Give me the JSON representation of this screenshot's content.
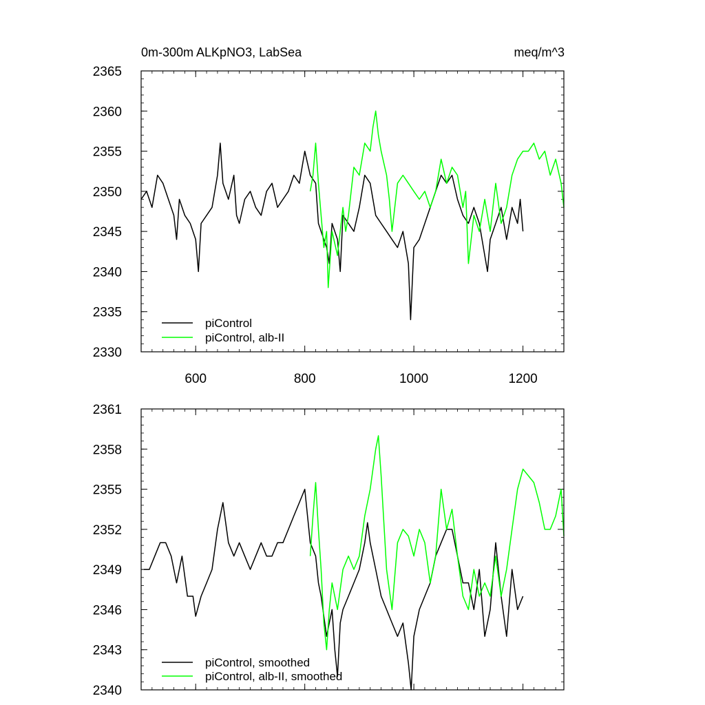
{
  "chart_data": [
    {
      "type": "line",
      "title_left": "0m-300m ALKpNO3, LabSea",
      "title_right": "meq/m^3",
      "xlim": [
        500,
        1275
      ],
      "ylim": [
        2330,
        2365
      ],
      "x_ticks": [
        600,
        800,
        1000,
        1200
      ],
      "x_tick_labels": [
        "600",
        "800",
        "1000",
        "1200"
      ],
      "y_ticks": [
        2330,
        2335,
        2340,
        2345,
        2350,
        2355,
        2360,
        2365
      ],
      "y_tick_labels": [
        "2330",
        "2335",
        "2340",
        "2345",
        "2350",
        "2355",
        "2360",
        "2365"
      ],
      "grid": false,
      "legend_position": "bottom-left",
      "series": [
        {
          "name": "piControl",
          "color": "#000000",
          "x": [
            500,
            510,
            520,
            530,
            540,
            550,
            560,
            565,
            570,
            580,
            590,
            600,
            605,
            610,
            620,
            630,
            640,
            645,
            650,
            660,
            670,
            675,
            680,
            690,
            700,
            710,
            720,
            730,
            740,
            750,
            760,
            770,
            780,
            790,
            800,
            810,
            820,
            825,
            830,
            840,
            845,
            850,
            860,
            865,
            870,
            880,
            890,
            900,
            910,
            920,
            930,
            940,
            950,
            960,
            970,
            980,
            990,
            994,
            1000,
            1010,
            1020,
            1030,
            1040,
            1050,
            1060,
            1070,
            1080,
            1090,
            1100,
            1110,
            1120,
            1130,
            1135,
            1140,
            1150,
            1160,
            1170,
            1180,
            1190,
            1195,
            1200
          ],
          "values": [
            2349,
            2350,
            2348,
            2352,
            2351,
            2349,
            2347,
            2344,
            2349,
            2347,
            2346,
            2344,
            2340,
            2346,
            2347,
            2348,
            2352,
            2356,
            2351,
            2349,
            2352,
            2347,
            2346,
            2349,
            2350,
            2348,
            2347,
            2350,
            2351,
            2348,
            2349,
            2350,
            2352,
            2351,
            2355,
            2352,
            2351,
            2346,
            2345,
            2343,
            2341,
            2346,
            2344,
            2340,
            2347,
            2346,
            2345,
            2348,
            2352,
            2351,
            2347,
            2346,
            2345,
            2344,
            2343,
            2345,
            2341,
            2334,
            2343,
            2344,
            2346,
            2348,
            2350,
            2352,
            2351,
            2352,
            2349,
            2347,
            2346,
            2348,
            2346,
            2342,
            2340,
            2344,
            2346,
            2348,
            2344,
            2348,
            2346,
            2349,
            2345
          ]
        },
        {
          "name": "piControl, alb-II",
          "color": "#00ff00",
          "x": [
            810,
            815,
            820,
            825,
            830,
            835,
            840,
            843,
            846,
            850,
            860,
            870,
            875,
            880,
            890,
            900,
            910,
            920,
            925,
            930,
            935,
            940,
            950,
            955,
            960,
            970,
            980,
            990,
            1000,
            1010,
            1020,
            1030,
            1040,
            1050,
            1060,
            1070,
            1080,
            1090,
            1095,
            1100,
            1110,
            1120,
            1130,
            1140,
            1150,
            1160,
            1170,
            1180,
            1190,
            1200,
            1210,
            1220,
            1230,
            1240,
            1250,
            1260,
            1270,
            1275
          ],
          "values": [
            2350,
            2352,
            2356,
            2351,
            2347,
            2343,
            2345,
            2338,
            2341,
            2345,
            2342,
            2348,
            2345,
            2347,
            2353,
            2352,
            2356,
            2355,
            2358,
            2360,
            2357,
            2355,
            2352,
            2349,
            2345,
            2351,
            2352,
            2351,
            2350,
            2349,
            2350,
            2348,
            2350,
            2354,
            2351,
            2353,
            2352,
            2348,
            2350,
            2341,
            2347,
            2345,
            2349,
            2345,
            2351,
            2346,
            2348,
            2352,
            2354,
            2355,
            2355,
            2356,
            2354,
            2355,
            2352,
            2354,
            2351,
            2348
          ]
        }
      ],
      "legend": [
        "piControl",
        "piControl, alb-II"
      ]
    },
    {
      "type": "line",
      "xlim": [
        500,
        1275
      ],
      "ylim": [
        2340,
        2361
      ],
      "x_ticks": [
        600,
        800,
        1000,
        1200
      ],
      "y_ticks": [
        2340,
        2343,
        2346,
        2349,
        2352,
        2355,
        2358,
        2361
      ],
      "y_tick_labels": [
        "2340",
        "2343",
        "2346",
        "2349",
        "2352",
        "2355",
        "2358",
        "2361"
      ],
      "grid": false,
      "legend_position": "bottom-left",
      "series": [
        {
          "name": "piControl, smoothed",
          "color": "#000000",
          "x": [
            505,
            515,
            525,
            535,
            545,
            555,
            565,
            575,
            585,
            595,
            600,
            610,
            620,
            630,
            640,
            650,
            660,
            670,
            680,
            690,
            700,
            710,
            720,
            730,
            740,
            750,
            760,
            770,
            780,
            790,
            800,
            810,
            820,
            825,
            830,
            840,
            845,
            850,
            855,
            860,
            865,
            870,
            880,
            890,
            900,
            910,
            915,
            920,
            930,
            940,
            950,
            960,
            970,
            980,
            990,
            995,
            1000,
            1010,
            1020,
            1030,
            1040,
            1050,
            1060,
            1070,
            1080,
            1090,
            1100,
            1110,
            1120,
            1130,
            1140,
            1150,
            1160,
            1170,
            1180,
            1190,
            1200
          ],
          "values": [
            2349,
            2349,
            2350,
            2351,
            2351,
            2350,
            2348,
            2350,
            2347,
            2347,
            2345.5,
            2347,
            2348,
            2349,
            2352,
            2354,
            2351,
            2350,
            2351,
            2350,
            2349,
            2350,
            2351,
            2350,
            2350,
            2351,
            2351,
            2352,
            2353,
            2354,
            2355,
            2351,
            2350,
            2348,
            2347,
            2344,
            2345,
            2346,
            2343,
            2341,
            2345,
            2346,
            2347,
            2348,
            2349,
            2351,
            2352.5,
            2351,
            2349,
            2347,
            2346,
            2345,
            2344,
            2345,
            2342,
            2340,
            2344,
            2346,
            2347,
            2348,
            2350,
            2351,
            2352,
            2352,
            2350,
            2348,
            2348,
            2346,
            2349,
            2344,
            2346,
            2351,
            2347,
            2344,
            2349,
            2346,
            2347
          ]
        },
        {
          "name": "piControl, alb-II, smoothed",
          "color": "#00ff00",
          "x": [
            810,
            815,
            820,
            825,
            830,
            835,
            840,
            845,
            850,
            860,
            870,
            880,
            890,
            900,
            910,
            920,
            930,
            935,
            940,
            950,
            960,
            970,
            980,
            990,
            1000,
            1010,
            1020,
            1030,
            1040,
            1050,
            1060,
            1070,
            1080,
            1090,
            1100,
            1110,
            1120,
            1130,
            1140,
            1150,
            1160,
            1170,
            1180,
            1190,
            1200,
            1210,
            1220,
            1230,
            1240,
            1250,
            1260,
            1270,
            1275
          ],
          "values": [
            2350,
            2353,
            2355.5,
            2352,
            2349,
            2345,
            2343,
            2346,
            2348,
            2346,
            2349,
            2350,
            2349,
            2350,
            2353,
            2355,
            2358,
            2359,
            2356,
            2349,
            2346,
            2351,
            2352,
            2351.5,
            2350,
            2352,
            2351,
            2348,
            2350,
            2355,
            2352,
            2353.5,
            2350,
            2347,
            2346,
            2349,
            2347,
            2348,
            2347,
            2350,
            2347,
            2349,
            2352,
            2355,
            2356.5,
            2356,
            2355.5,
            2354,
            2352,
            2352,
            2353,
            2355,
            2351.5
          ]
        }
      ],
      "legend": [
        "piControl, smoothed",
        "piControl, alb-II, smoothed"
      ]
    }
  ]
}
